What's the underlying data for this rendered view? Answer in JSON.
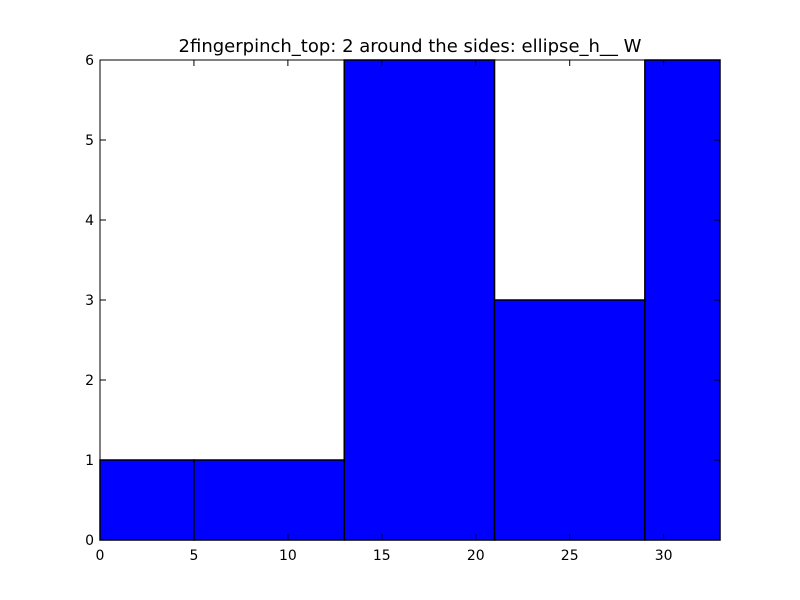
{
  "chart_data": {
    "type": "bar",
    "title": "2fingerpinch_top: 2 around the sides: ellipse_h__ W",
    "xlabel": "",
    "ylabel": "",
    "xlim": [
      0,
      33
    ],
    "ylim": [
      0,
      6
    ],
    "xticks": [
      "0",
      "5",
      "10",
      "15",
      "20",
      "25",
      "30"
    ],
    "yticks": [
      "0",
      "1",
      "2",
      "3",
      "4",
      "5",
      "6"
    ],
    "grid": false,
    "bins": [
      {
        "x0": 0,
        "x1": 5,
        "value": 1
      },
      {
        "x0": 5,
        "x1": 13,
        "value": 1
      },
      {
        "x0": 13,
        "x1": 21,
        "value": 6
      },
      {
        "x0": 21,
        "x1": 29,
        "value": 3
      },
      {
        "x0": 29,
        "x1": 33,
        "value": 6
      }
    ],
    "bar_color": "#0000ff",
    "edge_color": "#000000"
  }
}
